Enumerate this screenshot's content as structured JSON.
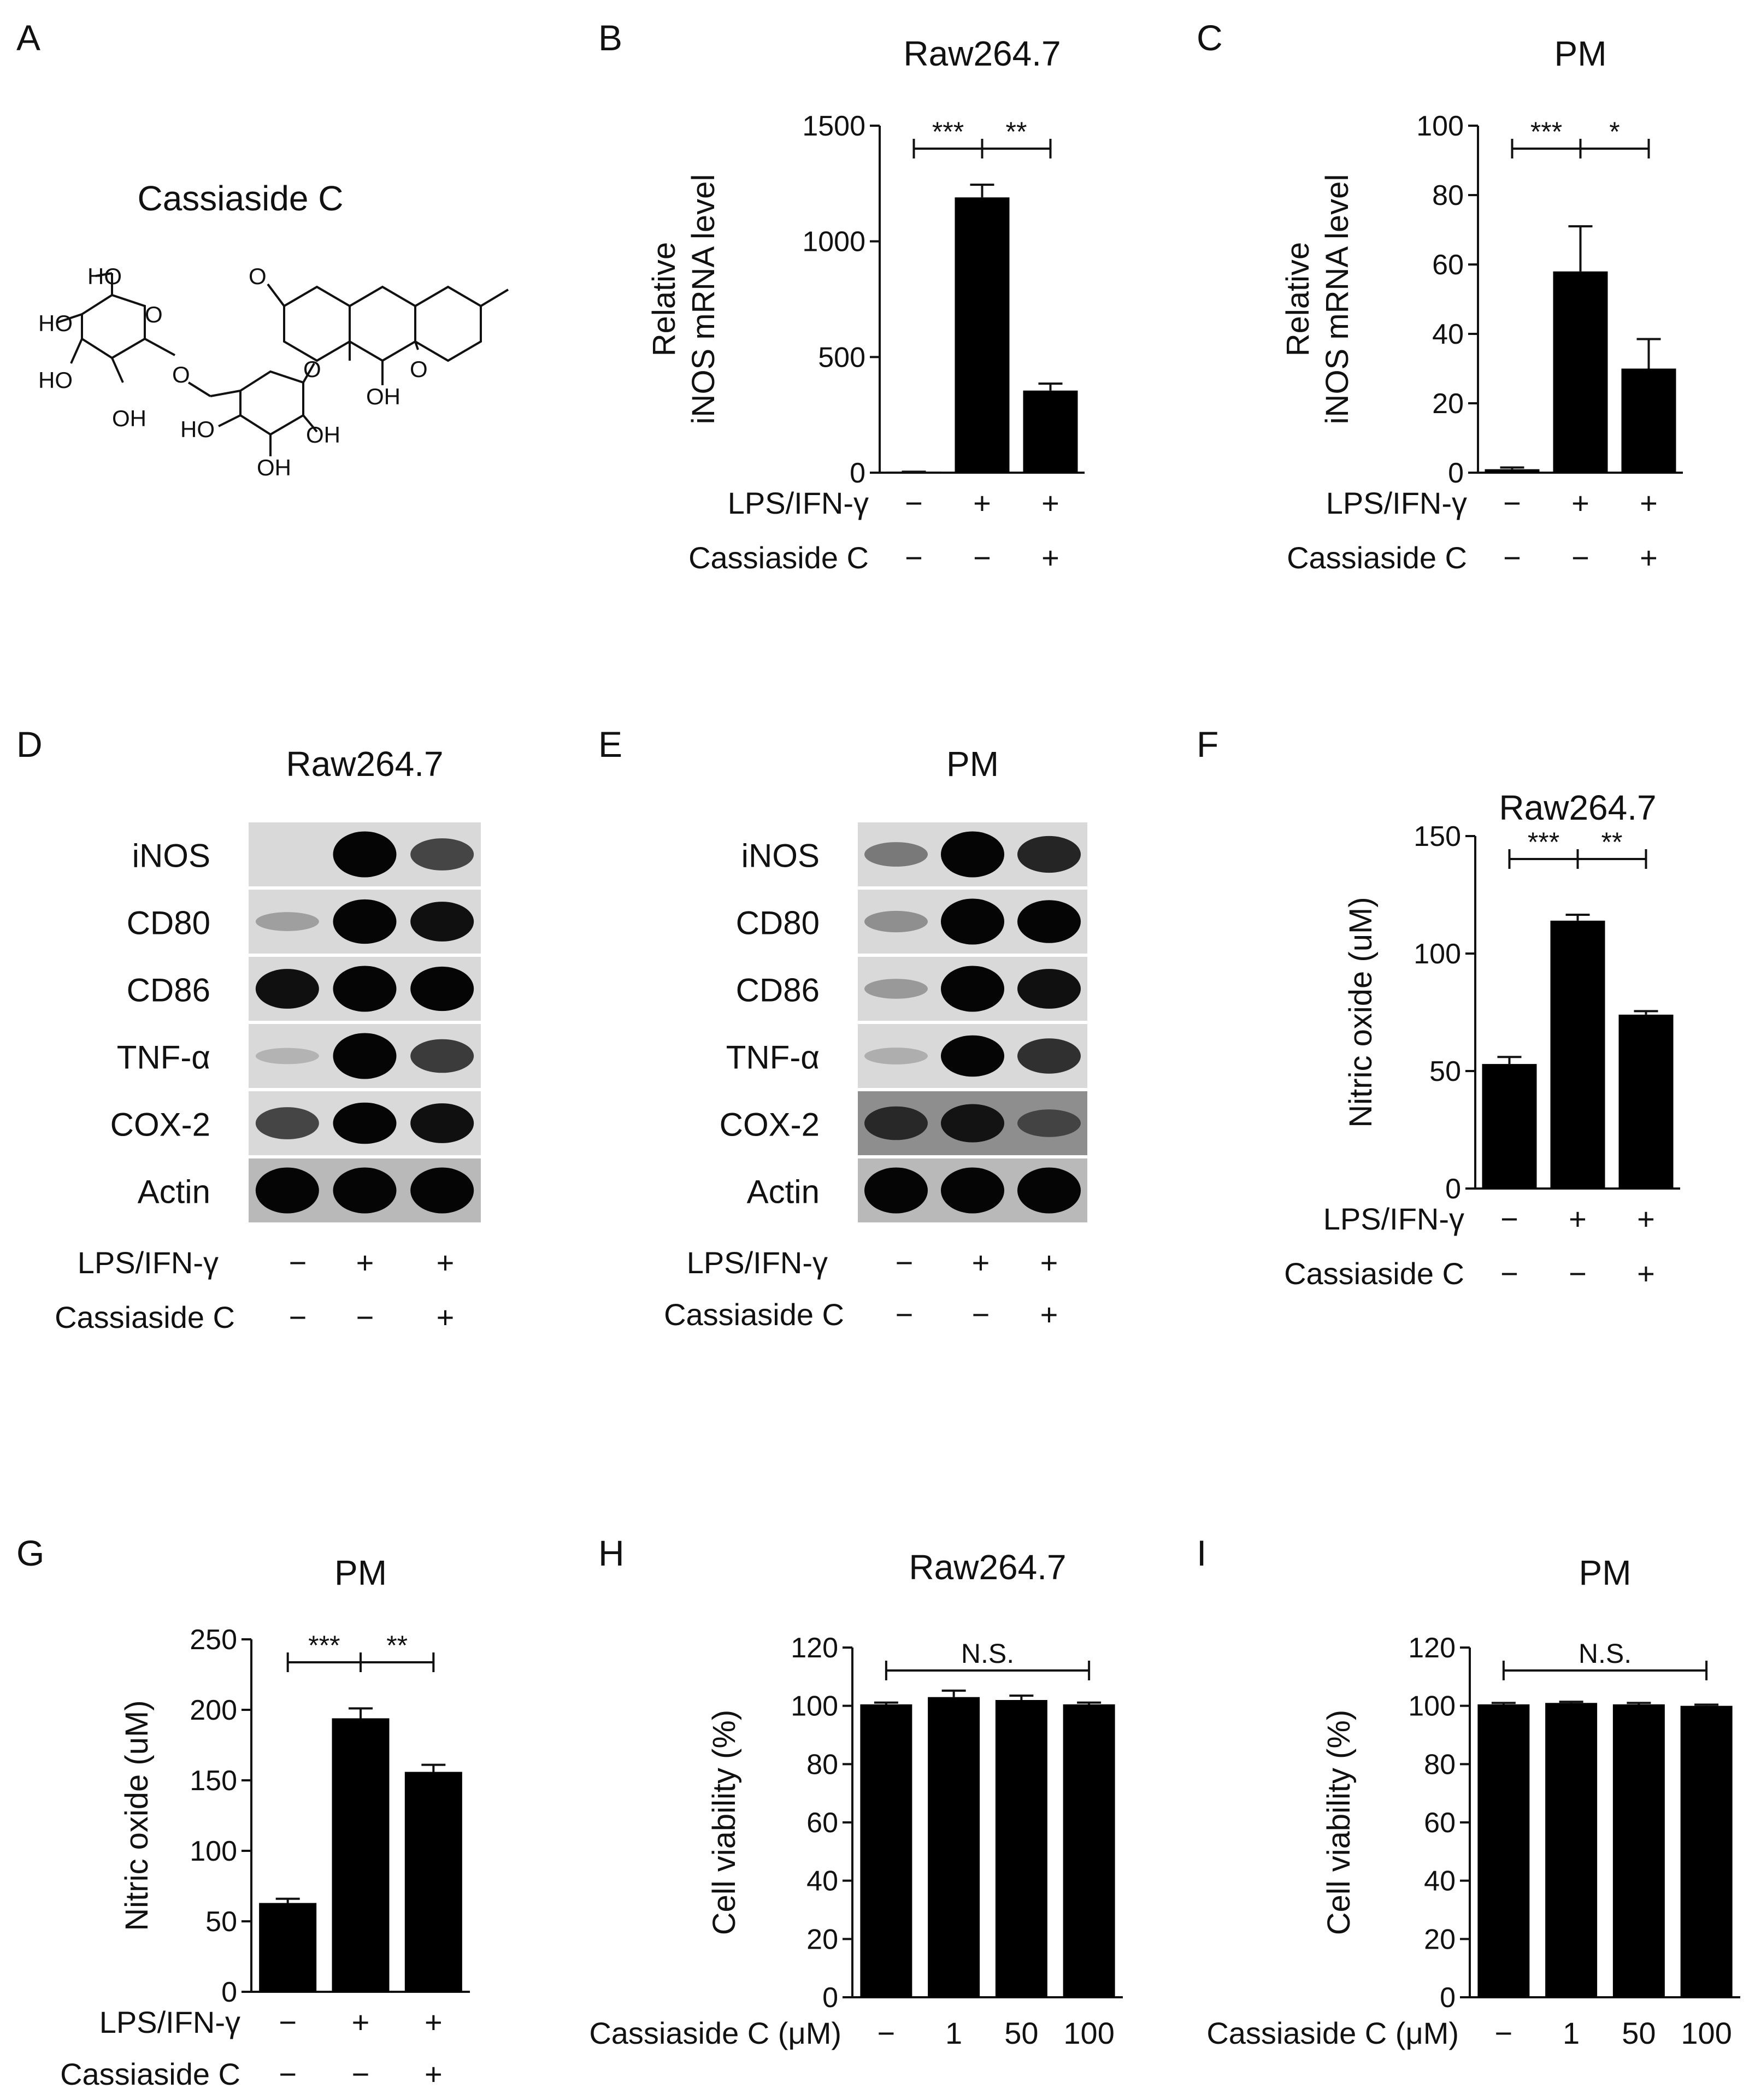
{
  "panels": [
    {
      "letter": "A",
      "kind": "structure",
      "title": "Cassiaside C",
      "atoms": [
        "HO",
        "HO",
        "HO",
        "OH",
        "O",
        "O",
        "O",
        "HO",
        "OH",
        "OH",
        "OH",
        "O",
        "O"
      ]
    },
    {
      "letter": "B",
      "kind": "bar"
    },
    {
      "letter": "C",
      "kind": "bar"
    },
    {
      "letter": "D",
      "kind": "western"
    },
    {
      "letter": "E",
      "kind": "western"
    },
    {
      "letter": "F",
      "kind": "bar"
    },
    {
      "letter": "G",
      "kind": "bar"
    },
    {
      "letter": "H",
      "kind": "bar"
    },
    {
      "letter": "I",
      "kind": "bar"
    }
  ],
  "chart_data": [
    {
      "panel": "B",
      "type": "bar",
      "title": "Raw264.7",
      "ylabel": [
        "Relative",
        "iNOS mRNA level"
      ],
      "ylim": [
        0,
        1500
      ],
      "yticks": [
        0,
        500,
        1000,
        1500
      ],
      "categories": [
        "LPS/IFN-γ −, Cassiaside C −",
        "LPS/IFN-γ +, Cassiaside C −",
        "LPS/IFN-γ +, Cassiaside C +"
      ],
      "values": [
        2,
        1190,
        355
      ],
      "errors": [
        2,
        55,
        30
      ],
      "treatment_rows": [
        {
          "label": "LPS/IFN-γ",
          "marks": [
            "−",
            "+",
            "+"
          ]
        },
        {
          "label": "Cassiaside C",
          "marks": [
            "−",
            "−",
            "+"
          ]
        }
      ],
      "significance": [
        {
          "from": 0,
          "to": 1,
          "label": "***"
        },
        {
          "from": 1,
          "to": 2,
          "label": "**"
        }
      ],
      "bar_color": "#000000"
    },
    {
      "panel": "C",
      "type": "bar",
      "title": "PM",
      "ylabel": [
        "Relative",
        "iNOS mRNA level"
      ],
      "ylim": [
        0,
        100
      ],
      "yticks": [
        0,
        20,
        40,
        60,
        80,
        100
      ],
      "categories": [
        "LPS/IFN-γ −, Cassiaside C −",
        "LPS/IFN-γ +, Cassiaside C −",
        "LPS/IFN-γ +, Cassiaside C +"
      ],
      "values": [
        1,
        58,
        30
      ],
      "errors": [
        0.5,
        13,
        8.5
      ],
      "treatment_rows": [
        {
          "label": "LPS/IFN-γ",
          "marks": [
            "−",
            "+",
            "+"
          ]
        },
        {
          "label": "Cassiaside C",
          "marks": [
            "−",
            "−",
            "+"
          ]
        }
      ],
      "significance": [
        {
          "from": 0,
          "to": 1,
          "label": "***"
        },
        {
          "from": 1,
          "to": 2,
          "label": "*"
        }
      ],
      "bar_color": "#000000"
    },
    {
      "panel": "F",
      "type": "bar",
      "title": "Raw264.7",
      "ylabel": [
        "Nitric oxide (uM)"
      ],
      "ylim": [
        0,
        150
      ],
      "yticks": [
        0,
        50,
        100,
        150
      ],
      "categories": [
        "LPS/IFN-γ −, Cassiaside C −",
        "LPS/IFN-γ +, Cassiaside C −",
        "LPS/IFN-γ +, Cassiaside C +"
      ],
      "values": [
        53,
        114,
        74
      ],
      "errors": [
        3,
        2.5,
        1.5
      ],
      "treatment_rows": [
        {
          "label": "LPS/IFN-γ",
          "marks": [
            "−",
            "+",
            "+"
          ]
        },
        {
          "label": "Cassiaside C",
          "marks": [
            "−",
            "−",
            "+"
          ]
        }
      ],
      "significance": [
        {
          "from": 0,
          "to": 1,
          "label": "***"
        },
        {
          "from": 1,
          "to": 2,
          "label": "**"
        }
      ],
      "bar_color": "#000000"
    },
    {
      "panel": "G",
      "type": "bar",
      "title": "PM",
      "ylabel": [
        "Nitric oxide (uM)"
      ],
      "ylim": [
        0,
        250
      ],
      "yticks": [
        0,
        50,
        100,
        150,
        200,
        250
      ],
      "categories": [
        "LPS/IFN-γ −, Cassiaside C −",
        "LPS/IFN-γ +, Cassiaside C −",
        "LPS/IFN-γ +, Cassiaside C +"
      ],
      "values": [
        63,
        194,
        156
      ],
      "errors": [
        3,
        7,
        5
      ],
      "treatment_rows": [
        {
          "label": "LPS/IFN-γ",
          "marks": [
            "−",
            "+",
            "+"
          ]
        },
        {
          "label": "Cassiaside C",
          "marks": [
            "−",
            "−",
            "+"
          ]
        }
      ],
      "significance": [
        {
          "from": 0,
          "to": 1,
          "label": "***"
        },
        {
          "from": 1,
          "to": 2,
          "label": "**"
        }
      ],
      "bar_color": "#000000"
    },
    {
      "panel": "H",
      "type": "bar",
      "title": "Raw264.7",
      "ylabel": [
        "Cell viability (%)"
      ],
      "ylim": [
        0,
        120
      ],
      "yticks": [
        0,
        20,
        40,
        60,
        80,
        100,
        120
      ],
      "xlabel": "Cassiaside C (μM)",
      "categories": [
        "−",
        "1",
        "50",
        "100"
      ],
      "values": [
        100.5,
        103,
        102,
        100.5
      ],
      "errors": [
        0.6,
        2.2,
        1.5,
        0.6
      ],
      "significance": [
        {
          "from": 0,
          "to": 3,
          "label": "N.S."
        }
      ],
      "bar_color": "#000000"
    },
    {
      "panel": "I",
      "type": "bar",
      "title": "PM",
      "ylabel": [
        "Cell viability (%)"
      ],
      "ylim": [
        0,
        120
      ],
      "yticks": [
        0,
        20,
        40,
        60,
        80,
        100,
        120
      ],
      "xlabel": "Cassiaside C (μM)",
      "categories": [
        "−",
        "1",
        "50",
        "100"
      ],
      "values": [
        100.5,
        101,
        100.5,
        100
      ],
      "errors": [
        0.5,
        0.4,
        0.5,
        0.4
      ],
      "significance": [
        {
          "from": 0,
          "to": 3,
          "label": "N.S."
        }
      ],
      "bar_color": "#000000"
    }
  ],
  "blots": [
    {
      "panel": "D",
      "title": "Raw264.7",
      "rows": [
        {
          "label": "iNOS",
          "intensity": [
            0.0,
            1.0,
            0.55
          ]
        },
        {
          "label": "CD80",
          "intensity": [
            0.12,
            0.95,
            0.8
          ]
        },
        {
          "label": "CD86",
          "intensity": [
            0.8,
            1.0,
            0.95
          ]
        },
        {
          "label": "TNF-α",
          "intensity": [
            0.03,
            1.0,
            0.6
          ]
        },
        {
          "label": "COX-2",
          "intensity": [
            0.55,
            0.85,
            0.8
          ]
        },
        {
          "label": "Actin",
          "intensity": [
            1.0,
            1.0,
            1.0
          ]
        }
      ],
      "treatment_rows": [
        {
          "label": "LPS/IFN-γ",
          "marks": [
            "−",
            "+",
            "+"
          ]
        },
        {
          "label": "Cassiaside C",
          "marks": [
            "−",
            "−",
            "+"
          ]
        }
      ]
    },
    {
      "panel": "E",
      "title": "PM",
      "rows": [
        {
          "label": "iNOS",
          "intensity": [
            0.3,
            1.0,
            0.7
          ]
        },
        {
          "label": "CD80",
          "intensity": [
            0.2,
            1.0,
            0.9
          ]
        },
        {
          "label": "CD86",
          "intensity": [
            0.15,
            1.0,
            0.8
          ]
        },
        {
          "label": "TNF-α",
          "intensity": [
            0.05,
            0.85,
            0.65
          ]
        },
        {
          "label": "COX-2",
          "intensity": [
            0.6,
            0.75,
            0.4
          ]
        },
        {
          "label": "Actin",
          "intensity": [
            1.0,
            1.0,
            1.0
          ]
        }
      ],
      "treatment_rows": [
        {
          "label": "LPS/IFN-γ",
          "marks": [
            "−",
            "+",
            "+"
          ]
        },
        {
          "label": "Cassiaside C",
          "marks": [
            "−",
            "−",
            "+"
          ]
        }
      ]
    }
  ]
}
